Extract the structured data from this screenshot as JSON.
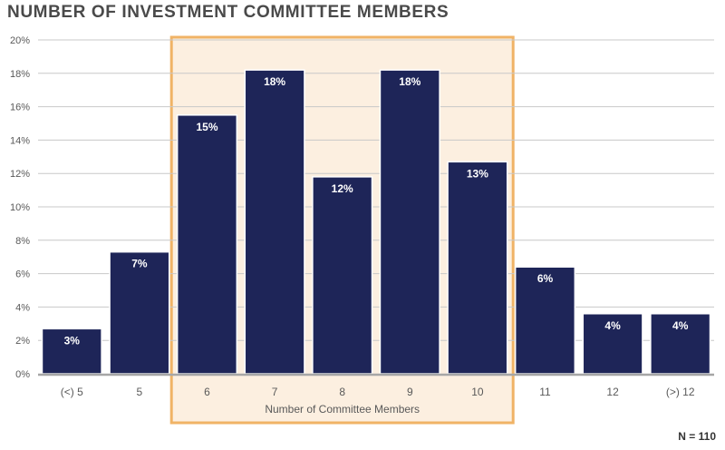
{
  "footer": {
    "n_label": "N = 110"
  },
  "colors": {
    "bar": "#1e2558",
    "highlight_fill": "#fcefe0",
    "highlight_stroke": "#f0b366",
    "grid": "#c8c8c8"
  },
  "chart_data": {
    "type": "bar",
    "title": "NUMBER OF INVESTMENT COMMITTEE MEMBERS",
    "xlabel": "Number of Committee Members",
    "ylabel": "",
    "categories": [
      "(<) 5",
      "5",
      "6",
      "7",
      "8",
      "9",
      "10",
      "11",
      "12",
      "(>) 12"
    ],
    "values": [
      2.7,
      7.3,
      15.5,
      18.2,
      11.8,
      18.2,
      12.7,
      6.4,
      3.6,
      3.6
    ],
    "data_labels": [
      "3%",
      "7%",
      "15%",
      "18%",
      "12%",
      "18%",
      "13%",
      "6%",
      "4%",
      "4%"
    ],
    "ylim": [
      0,
      20
    ],
    "yticks": [
      0,
      2,
      4,
      6,
      8,
      10,
      12,
      14,
      16,
      18,
      20
    ],
    "ytick_labels": [
      "0%",
      "2%",
      "4%",
      "6%",
      "8%",
      "10%",
      "12%",
      "14%",
      "16%",
      "18%",
      "20%"
    ],
    "grid": true,
    "highlighted_categories": [
      "6",
      "7",
      "8",
      "9",
      "10"
    ]
  }
}
